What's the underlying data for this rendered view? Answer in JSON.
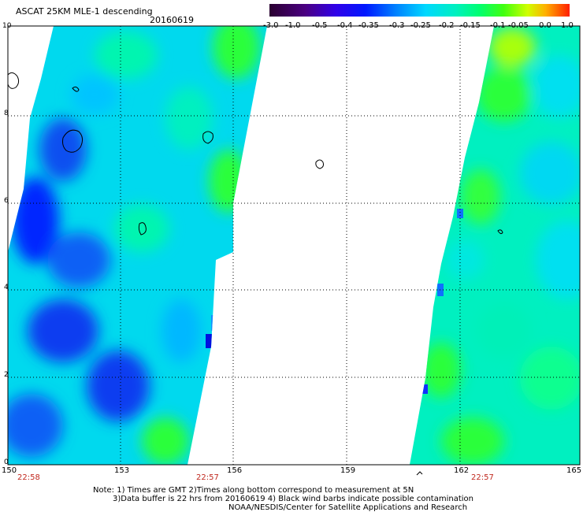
{
  "header": {
    "title": "ASCAT 25KM MLE-1 descending",
    "date": "20160619"
  },
  "colorbar": {
    "ticks": [
      "-3.0",
      "-1.0",
      "-0.5",
      "-0.4",
      "-0.35",
      "-0.3",
      "-0.25",
      "-0.2",
      "-0.15",
      "-0.1",
      "-0.05",
      "0.0",
      "1.0"
    ],
    "colors": [
      "#2a0030",
      "#4b0082",
      "#5500dd",
      "#0018ff",
      "#0070ff",
      "#00b4ff",
      "#00ecf0",
      "#00ffb0",
      "#1eff2e",
      "#a8ff00",
      "#ffff00",
      "#ff8c00",
      "#ff1e00"
    ]
  },
  "axes": {
    "x_ticks": [
      "150",
      "153",
      "156",
      "159",
      "162",
      "165"
    ],
    "y_ticks": [
      "0",
      "2",
      "4",
      "6",
      "8",
      "10"
    ],
    "x_range": [
      150,
      165
    ],
    "y_range": [
      0,
      10
    ],
    "grid": "dotted"
  },
  "time_labels": [
    {
      "lon": 150.5,
      "text": "22:58"
    },
    {
      "lon": 155.2,
      "text": "22:57"
    },
    {
      "lon": 162.5,
      "text": "22:57"
    }
  ],
  "notes": [
    "Note: 1) Times are GMT 2)Times along bottom correspond to measurement at 5N",
    "3)Data buffer is 22 hrs from 20160619 4) Black wind barbs indicate possible contamination",
    "NOAA/NESDIS/Center for Satellite Applications and Research"
  ],
  "colors": {
    "time_label": "#c0281e",
    "grid": "#000000",
    "no_data": "#ffffff"
  }
}
